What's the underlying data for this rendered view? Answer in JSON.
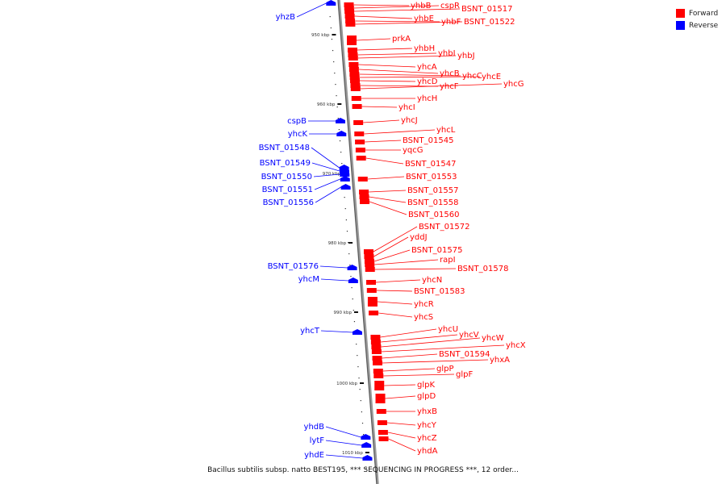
{
  "diagram": {
    "caption": "Bacillus subtilis subsp. natto BEST195, *** SEQUENCING IN PROGRESS ***, 12 order...",
    "legend": [
      {
        "label": "Forward",
        "color": "#ff0000"
      },
      {
        "label": "Reverse",
        "color": "#0000ff"
      }
    ],
    "ticks": [
      "950 kbp",
      "960 kbp",
      "970 kbp",
      "980 kbp",
      "990 kbp",
      "1000 kbp",
      "1010 kbp"
    ],
    "forward_genes": [
      "yhbB",
      "cspR",
      "BSNT_01517",
      "yhbE",
      "yhbF",
      "BSNT_01522",
      "prkA",
      "yhbH",
      "yhbI",
      "yhbJ",
      "yhcA",
      "yhcB",
      "yhcC",
      "yhcE",
      "yhcD",
      "yhcF",
      "yhcG",
      "yhcH",
      "yhcI",
      "yhcJ",
      "yhcL",
      "BSNT_01545",
      "yqcG",
      "BSNT_01547",
      "BSNT_01553",
      "BSNT_01557",
      "BSNT_01558",
      "BSNT_01560",
      "BSNT_01572",
      "yddJ",
      "BSNT_01575",
      "rapI",
      "BSNT_01578",
      "yhcN",
      "BSNT_01583",
      "yhcR",
      "yhcS",
      "yhcU",
      "yhcV",
      "yhcW",
      "yhcX",
      "BSNT_01594",
      "yhxA",
      "glpP",
      "glpF",
      "glpK",
      "glpD",
      "yhxB",
      "yhcY",
      "yhcZ",
      "yhdA"
    ],
    "reverse_genes": [
      "yhzB",
      "cspB",
      "yhcK",
      "BSNT_01548",
      "BSNT_01549",
      "BSNT_01550",
      "BSNT_01551",
      "BSNT_01556",
      "BSNT_01576",
      "yhcM",
      "yhcT",
      "yhdB",
      "lytF",
      "yhdE"
    ]
  }
}
